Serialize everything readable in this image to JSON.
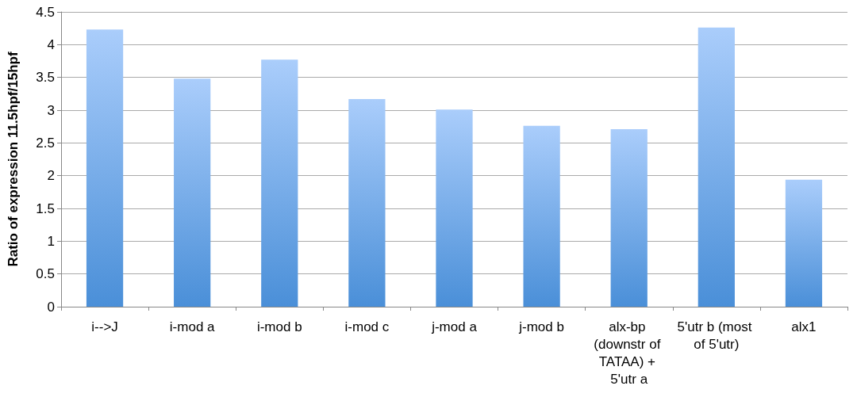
{
  "chart_data": {
    "type": "bar",
    "ylabel": "Ratio of expression 11.5hpf/15hpf",
    "categories": [
      "i-->J",
      "i-mod a",
      "i-mod b",
      "i-mod c",
      "j-mod a",
      "j-mod b",
      "alx-bp (downstr of TATAA) + 5'utr a",
      "5'utr b (most of 5'utr)",
      "alx1"
    ],
    "values": [
      4.23,
      3.48,
      3.77,
      3.17,
      3.01,
      2.76,
      2.71,
      4.26,
      1.94
    ],
    "color": "#4a8fd8",
    "ylim": [
      0,
      4.5
    ],
    "yticks": [
      0,
      0.5,
      1,
      1.5,
      2,
      2.5,
      3,
      3.5,
      4,
      4.5
    ],
    "grid": "y"
  }
}
